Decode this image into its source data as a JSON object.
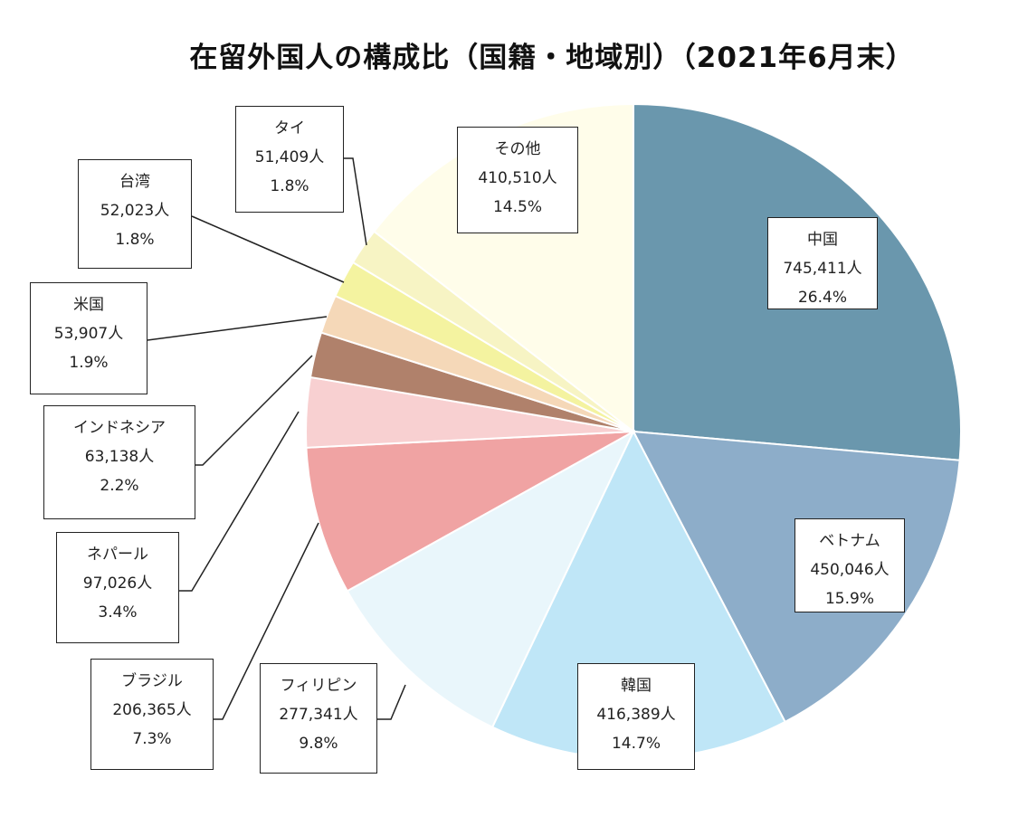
{
  "chart_data": {
    "type": "pie",
    "title": "在留外国人の構成比（国籍・地域別）（2021年6月末）",
    "start_angle_deg": 0,
    "direction": "clockwise",
    "slices": [
      {
        "name": "中国",
        "value": 745411,
        "count_label": "745,411人",
        "percent_label": "26.4%",
        "color": "#6a97ad"
      },
      {
        "name": "ベトナム",
        "value": 450046,
        "count_label": "450,046人",
        "percent_label": "15.9%",
        "color": "#8dadc9"
      },
      {
        "name": "韓国",
        "value": 416389,
        "count_label": "416,389人",
        "percent_label": "14.7%",
        "color": "#bfe6f7"
      },
      {
        "name": "フィリピン",
        "value": 277341,
        "count_label": "277,341人",
        "percent_label": "9.8%",
        "color": "#e9f6fb"
      },
      {
        "name": "ブラジル",
        "value": 206365,
        "count_label": "206,365人",
        "percent_label": "7.3%",
        "color": "#f0a3a3"
      },
      {
        "name": "ネパール",
        "value": 97026,
        "count_label": "97,026人",
        "percent_label": "3.4%",
        "color": "#f8d0d1"
      },
      {
        "name": "インドネシア",
        "value": 63138,
        "count_label": "63,138人",
        "percent_label": "2.2%",
        "color": "#b0816b"
      },
      {
        "name": "米国",
        "value": 53907,
        "count_label": "53,907人",
        "percent_label": "1.9%",
        "color": "#f5d8b8"
      },
      {
        "name": "台湾",
        "value": 52023,
        "count_label": "52,023人",
        "percent_label": "1.8%",
        "color": "#f4f3a0"
      },
      {
        "name": "タイ",
        "value": 51409,
        "count_label": "51,409人",
        "percent_label": "1.8%",
        "color": "#f7f4c4"
      },
      {
        "name": "その他",
        "value": 410510,
        "count_label": "410,510人",
        "percent_label": "14.5%",
        "color": "#fffdea"
      }
    ]
  }
}
